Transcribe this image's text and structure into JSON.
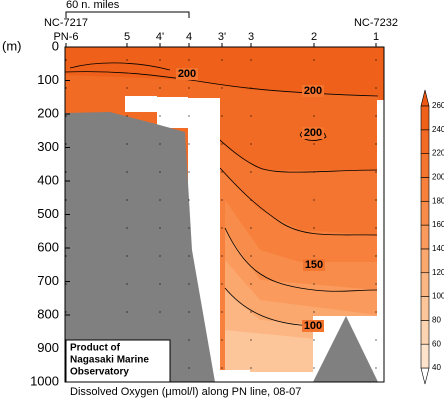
{
  "chart_data": {
    "type": "contour",
    "title": "Dissolved Oxygen (μmol/l) along PN line, 08-07",
    "y_label": "(m)",
    "ylim": [
      0,
      1000
    ],
    "y_inverted": true,
    "yticks": [
      0,
      100,
      200,
      300,
      400,
      500,
      600,
      700,
      800,
      900,
      1000
    ],
    "stations": [
      "PN-6",
      "5",
      "4'",
      "4",
      "3'",
      "3",
      "2",
      "1"
    ],
    "end_labels": [
      "NC-7217",
      "NC-7232"
    ],
    "scale_label": "60 n. miles",
    "contour_labels": [
      200,
      200,
      200,
      150,
      100
    ],
    "colorbar": {
      "ticks": [
        40,
        60,
        80,
        100,
        120,
        140,
        160,
        180,
        200,
        220,
        240,
        260
      ],
      "colors": [
        "#ffffff",
        "#fee3cc",
        "#fdd4b2",
        "#fdc59a",
        "#fcb684",
        "#fba86f",
        "#fa9a5c",
        "#f88d4b",
        "#f6803c",
        "#f4752f",
        "#f26b24",
        "#ef611a",
        "#ec5812"
      ]
    },
    "note": [
      "Product of",
      "Nagasaki Marine",
      "Observatory"
    ]
  }
}
